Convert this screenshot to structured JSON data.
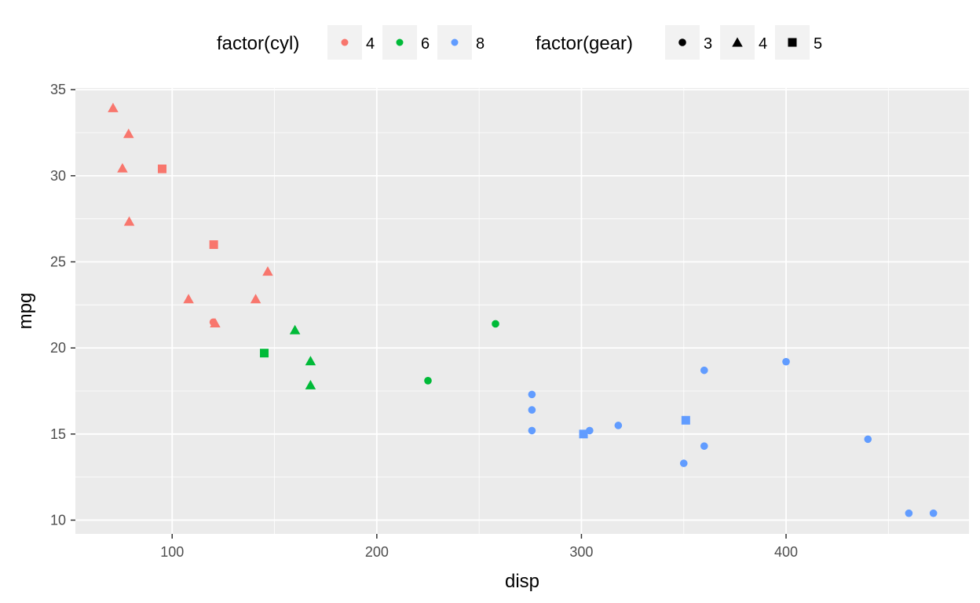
{
  "chart_data": {
    "type": "scatter",
    "title": "",
    "xlabel": "disp",
    "ylabel": "mpg",
    "xlim": [
      52.7,
      489.4
    ],
    "ylim": [
      9.2,
      35.1
    ],
    "x_ticks": [
      100,
      200,
      300,
      400
    ],
    "y_ticks": [
      10,
      15,
      20,
      25,
      30,
      35
    ],
    "grid": true,
    "legend_position": "top",
    "colors": {
      "4": "#F8766D",
      "6": "#00BA38",
      "8": "#619CFF"
    },
    "legends": [
      {
        "title": "factor(cyl)",
        "kind": "color",
        "entries": [
          "4",
          "6",
          "8"
        ]
      },
      {
        "title": "factor(gear)",
        "kind": "shape",
        "entries": [
          "3",
          "4",
          "5"
        ]
      }
    ],
    "points": [
      {
        "disp": 71.1,
        "mpg": 33.9,
        "cyl": "4",
        "gear": "4"
      },
      {
        "disp": 78.7,
        "mpg": 32.4,
        "cyl": "4",
        "gear": "4"
      },
      {
        "disp": 75.7,
        "mpg": 30.4,
        "cyl": "4",
        "gear": "4"
      },
      {
        "disp": 95.1,
        "mpg": 30.4,
        "cyl": "4",
        "gear": "5"
      },
      {
        "disp": 79.0,
        "mpg": 27.3,
        "cyl": "4",
        "gear": "4"
      },
      {
        "disp": 120.3,
        "mpg": 26.0,
        "cyl": "4",
        "gear": "5"
      },
      {
        "disp": 146.7,
        "mpg": 24.4,
        "cyl": "4",
        "gear": "4"
      },
      {
        "disp": 108.0,
        "mpg": 22.8,
        "cyl": "4",
        "gear": "4"
      },
      {
        "disp": 140.8,
        "mpg": 22.8,
        "cyl": "4",
        "gear": "4"
      },
      {
        "disp": 121.0,
        "mpg": 21.4,
        "cyl": "4",
        "gear": "4"
      },
      {
        "disp": 120.1,
        "mpg": 21.5,
        "cyl": "4",
        "gear": "3"
      },
      {
        "disp": 160.0,
        "mpg": 21.0,
        "cyl": "6",
        "gear": "4"
      },
      {
        "disp": 258.0,
        "mpg": 21.4,
        "cyl": "6",
        "gear": "3"
      },
      {
        "disp": 145.0,
        "mpg": 19.7,
        "cyl": "6",
        "gear": "5"
      },
      {
        "disp": 167.6,
        "mpg": 19.2,
        "cyl": "6",
        "gear": "4"
      },
      {
        "disp": 225.0,
        "mpg": 18.1,
        "cyl": "6",
        "gear": "3"
      },
      {
        "disp": 167.6,
        "mpg": 17.8,
        "cyl": "6",
        "gear": "4"
      },
      {
        "disp": 360.0,
        "mpg": 18.7,
        "cyl": "8",
        "gear": "3"
      },
      {
        "disp": 400.0,
        "mpg": 19.2,
        "cyl": "8",
        "gear": "3"
      },
      {
        "disp": 275.8,
        "mpg": 17.3,
        "cyl": "8",
        "gear": "3"
      },
      {
        "disp": 275.8,
        "mpg": 16.4,
        "cyl": "8",
        "gear": "3"
      },
      {
        "disp": 275.8,
        "mpg": 15.2,
        "cyl": "8",
        "gear": "3"
      },
      {
        "disp": 304.0,
        "mpg": 15.2,
        "cyl": "8",
        "gear": "3"
      },
      {
        "disp": 318.0,
        "mpg": 15.5,
        "cyl": "8",
        "gear": "3"
      },
      {
        "disp": 301.0,
        "mpg": 15.0,
        "cyl": "8",
        "gear": "5"
      },
      {
        "disp": 351.0,
        "mpg": 15.8,
        "cyl": "8",
        "gear": "5"
      },
      {
        "disp": 350.0,
        "mpg": 13.3,
        "cyl": "8",
        "gear": "3"
      },
      {
        "disp": 360.0,
        "mpg": 14.3,
        "cyl": "8",
        "gear": "3"
      },
      {
        "disp": 440.0,
        "mpg": 14.7,
        "cyl": "8",
        "gear": "3"
      },
      {
        "disp": 460.0,
        "mpg": 10.4,
        "cyl": "8",
        "gear": "3"
      },
      {
        "disp": 472.0,
        "mpg": 10.4,
        "cyl": "8",
        "gear": "3"
      }
    ]
  }
}
